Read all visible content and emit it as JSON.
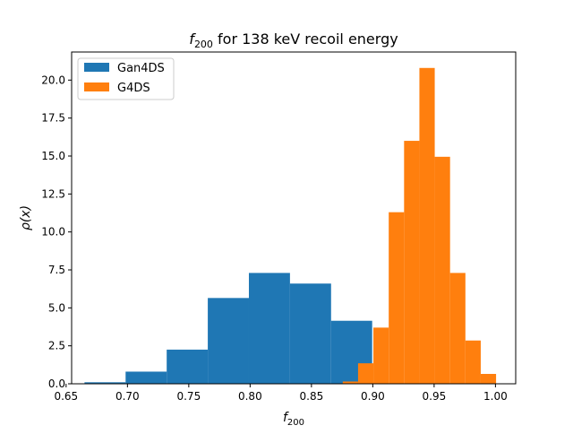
{
  "chart_data": {
    "type": "bar",
    "title": {
      "symbol": "f",
      "subscript": "200",
      "rest": " for 138 keV recoil energy"
    },
    "xlabel": {
      "symbol": "f",
      "subscript": "200"
    },
    "ylabel": "ρ(x)",
    "xlim": [
      0.6545,
      1.0165
    ],
    "ylim": [
      0,
      21.85
    ],
    "xticks": [
      0.65,
      0.7,
      0.75,
      0.8,
      0.85,
      0.9,
      0.95,
      1.0
    ],
    "xtick_labels": [
      "0.65",
      "0.70",
      "0.75",
      "0.80",
      "0.85",
      "0.90",
      "0.95",
      "1.00"
    ],
    "yticks": [
      0,
      2.5,
      5,
      7.5,
      10,
      12.5,
      15,
      17.5,
      20
    ],
    "ytick_labels": [
      "0.0",
      "2.5",
      "5.0",
      "7.5",
      "10.0",
      "12.5",
      "15.0",
      "17.5",
      "20.0"
    ],
    "grid": false,
    "legend_position": "top-left",
    "series": [
      {
        "name": "Gan4DS",
        "color": "#1f77b4",
        "bin_edges": [
          0.665,
          0.6985,
          0.732,
          0.7655,
          0.799,
          0.8325,
          0.866,
          0.8995
        ],
        "values": [
          0.1,
          0.8,
          2.25,
          5.65,
          7.3,
          6.6,
          4.15
        ]
      },
      {
        "name": "G4DS",
        "color": "#ff7f0e",
        "bin_edges": [
          0.8755,
          0.888,
          0.9005,
          0.913,
          0.9255,
          0.938,
          0.9505,
          0.963,
          0.9755,
          0.988,
          1.0005
        ],
        "values": [
          0.15,
          1.35,
          3.7,
          11.3,
          16.0,
          20.8,
          14.95,
          7.3,
          2.85,
          0.65
        ]
      }
    ]
  }
}
